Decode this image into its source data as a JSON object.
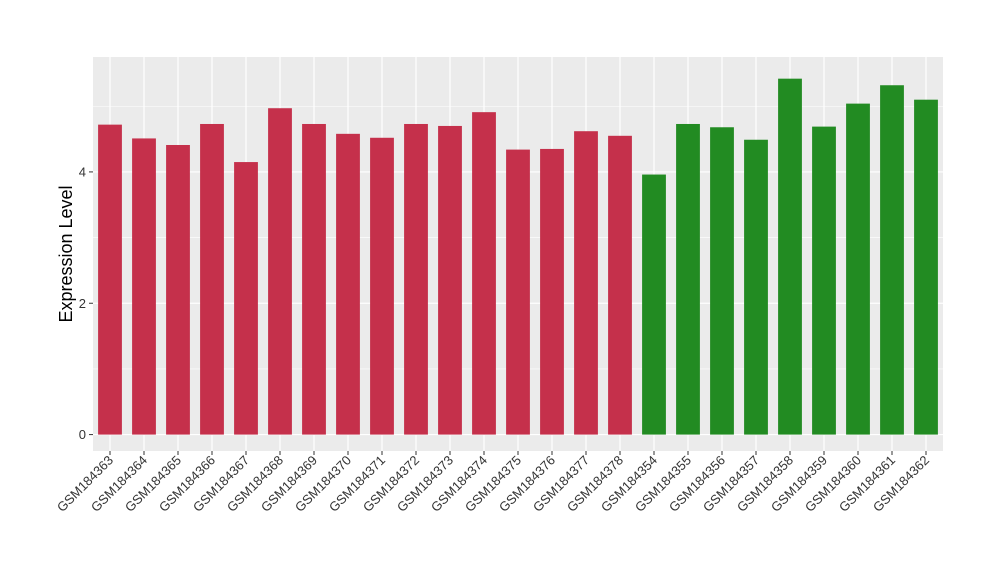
{
  "chart_data": {
    "type": "bar",
    "xlabel": "",
    "ylabel": "Expression Level",
    "ylim": [
      -0.25,
      5.75
    ],
    "yticks": [
      0,
      2,
      4
    ],
    "grid": true,
    "legend": "none",
    "colors": {
      "group1": "#C5304B",
      "group2": "#228B22",
      "panel": "#EBEBEB",
      "grid": "#FFFFFF"
    },
    "categories": [
      "GSM184363",
      "GSM184364",
      "GSM184365",
      "GSM184366",
      "GSM184367",
      "GSM184368",
      "GSM184369",
      "GSM184370",
      "GSM184371",
      "GSM184372",
      "GSM184373",
      "GSM184374",
      "GSM184375",
      "GSM184376",
      "GSM184377",
      "GSM184378",
      "GSM184354",
      "GSM184355",
      "GSM184356",
      "GSM184357",
      "GSM184358",
      "GSM184359",
      "GSM184360",
      "GSM184361",
      "GSM184362"
    ],
    "values": [
      4.72,
      4.51,
      4.41,
      4.73,
      4.15,
      4.97,
      4.73,
      4.58,
      4.52,
      4.73,
      4.7,
      4.91,
      4.34,
      4.35,
      4.62,
      4.55,
      3.96,
      4.73,
      4.68,
      4.49,
      5.42,
      4.69,
      5.04,
      5.32,
      5.1
    ],
    "groups": [
      "group1",
      "group1",
      "group1",
      "group1",
      "group1",
      "group1",
      "group1",
      "group1",
      "group1",
      "group1",
      "group1",
      "group1",
      "group1",
      "group1",
      "group1",
      "group1",
      "group2",
      "group2",
      "group2",
      "group2",
      "group2",
      "group2",
      "group2",
      "group2",
      "group2"
    ]
  }
}
